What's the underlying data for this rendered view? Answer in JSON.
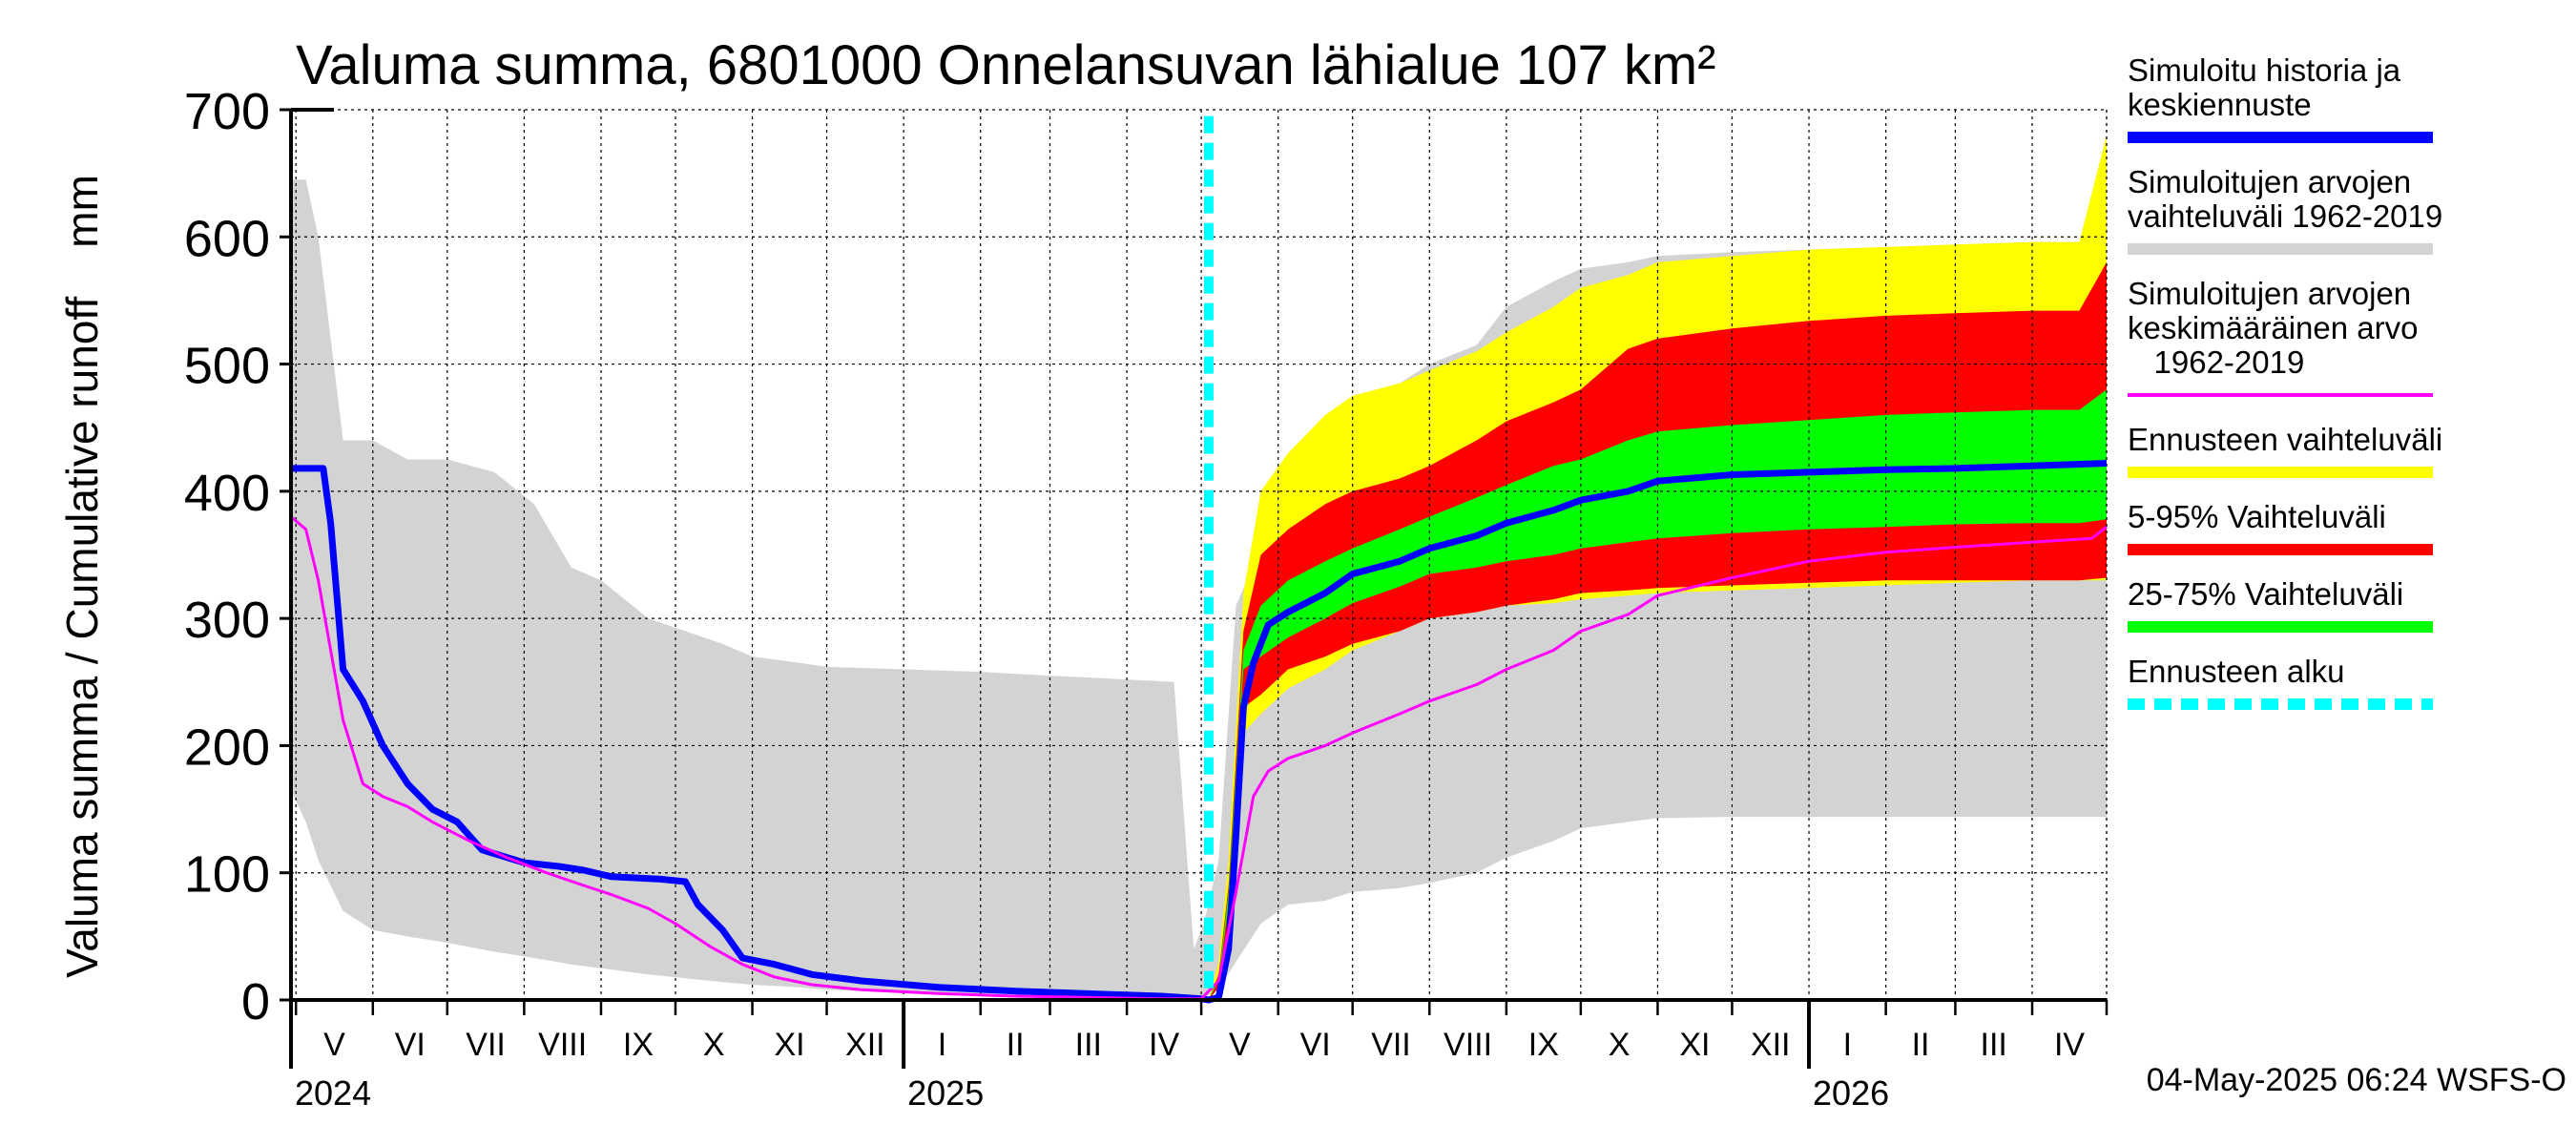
{
  "chart_data": {
    "type": "area",
    "title": "Valuma summa, 6801000 Onnelansuvan lähialue 107 km²",
    "ylabel": "Valuma summa / Cumulative runoff    mm",
    "ylim": [
      0,
      700
    ],
    "yticks": [
      "0",
      "100",
      "200",
      "300",
      "400",
      "500",
      "600",
      "700"
    ],
    "xlim": [
      "2024-04-29",
      "2026-05-01"
    ],
    "grid": true,
    "legend_position": "right",
    "forecast_start": "2025-05-04",
    "timestamp": "04-May-2025 06:24 WSFS-O",
    "month_labels": [
      "V",
      "VI",
      "VII",
      "VIII",
      "IX",
      "X",
      "XI",
      "XII",
      "I",
      "II",
      "III",
      "IV",
      "V",
      "VI",
      "VII",
      "VIII",
      "IX",
      "X",
      "XI",
      "XII",
      "I",
      "II",
      "III",
      "IV"
    ],
    "year_labels": [
      "2024",
      "2025",
      "2026"
    ],
    "legend": [
      {
        "lines": [
          "Simuloitu historia ja",
          "keskiennuste"
        ],
        "color": "#0000ff",
        "style": "solid"
      },
      {
        "lines": [
          "Simuloitujen arvojen",
          "vaihteluväli 1962-2019"
        ],
        "color": "#d3d3d3",
        "style": "solid"
      },
      {
        "lines": [
          "Simuloitujen arvojen",
          "keskimääräinen arvo",
          "   1962-2019"
        ],
        "color": "#ff00ff",
        "style": "thin"
      },
      {
        "lines": [
          "Ennusteen vaihteluväli"
        ],
        "color": "#ffff00",
        "style": "solid"
      },
      {
        "lines": [
          "5-95% Vaihteluväli"
        ],
        "color": "#ff0000",
        "style": "solid"
      },
      {
        "lines": [
          "25-75% Vaihteluväli"
        ],
        "color": "#00ff00",
        "style": "solid"
      },
      {
        "lines": [
          "Ennusteen alku"
        ],
        "color": "#00ffff",
        "style": "dashed"
      }
    ],
    "series": [
      {
        "name": "Simuloitujen arvojen vaihteluväli 1962-2019",
        "kind": "band",
        "color": "#d3d3d3",
        "x": [
          "2024-04-29",
          "2024-05-05",
          "2024-05-10",
          "2024-05-20",
          "2024-06-01",
          "2024-06-15",
          "2024-07-01",
          "2024-07-20",
          "2024-08-05",
          "2024-08-20",
          "2024-09-01",
          "2024-09-20",
          "2024-10-05",
          "2024-10-20",
          "2024-11-01",
          "2024-11-20",
          "2024-12-01",
          "2025-01-01",
          "2025-02-01",
          "2025-03-01",
          "2025-04-01",
          "2025-04-20",
          "2025-04-28",
          "2025-05-02",
          "2025-05-08",
          "2025-05-15",
          "2025-05-25",
          "2025-06-05",
          "2025-06-20",
          "2025-07-01",
          "2025-07-20",
          "2025-08-01",
          "2025-08-20",
          "2025-09-01",
          "2025-09-20",
          "2025-10-01",
          "2025-10-20",
          "2025-11-01",
          "2025-12-01",
          "2026-01-01",
          "2026-02-01",
          "2026-03-01",
          "2026-04-01",
          "2026-04-20",
          "2026-05-01"
        ],
        "low": [
          165,
          140,
          110,
          70,
          55,
          50,
          45,
          38,
          33,
          28,
          25,
          20,
          17,
          14,
          12,
          10,
          8,
          6,
          5,
          4,
          3,
          2,
          1,
          2,
          8,
          30,
          60,
          75,
          78,
          85,
          88,
          92,
          100,
          112,
          125,
          135,
          140,
          143,
          144,
          144,
          144,
          144,
          144,
          144,
          144
        ],
        "high": [
          645,
          645,
          600,
          440,
          440,
          425,
          425,
          415,
          390,
          340,
          330,
          300,
          290,
          280,
          270,
          265,
          262,
          260,
          258,
          255,
          252,
          250,
          40,
          60,
          110,
          310,
          355,
          410,
          440,
          462,
          485,
          500,
          515,
          545,
          565,
          575,
          580,
          585,
          588,
          590,
          592,
          593,
          594,
          594,
          594
        ]
      },
      {
        "name": "Ennusteen vaihteluväli",
        "kind": "band",
        "color": "#ffff00",
        "x": [
          "2025-05-04",
          "2025-05-08",
          "2025-05-12",
          "2025-05-18",
          "2025-05-25",
          "2025-06-05",
          "2025-06-20",
          "2025-07-01",
          "2025-07-20",
          "2025-08-01",
          "2025-08-20",
          "2025-09-01",
          "2025-09-20",
          "2025-10-01",
          "2025-10-20",
          "2025-11-01",
          "2025-12-01",
          "2026-01-01",
          "2026-02-01",
          "2026-03-01",
          "2026-04-01",
          "2026-04-20",
          "2026-05-01"
        ],
        "low": [
          0,
          15,
          80,
          210,
          225,
          245,
          260,
          275,
          290,
          300,
          305,
          310,
          312,
          315,
          318,
          320,
          322,
          324,
          326,
          328,
          330,
          330,
          330
        ],
        "high": [
          0,
          30,
          110,
          320,
          400,
          430,
          460,
          475,
          485,
          495,
          510,
          525,
          545,
          560,
          570,
          580,
          585,
          590,
          592,
          594,
          596,
          596,
          680
        ]
      },
      {
        "name": "5-95% Vaihteluväli",
        "kind": "band",
        "color": "#ff0000",
        "x": [
          "2025-05-04",
          "2025-05-08",
          "2025-05-12",
          "2025-05-18",
          "2025-05-25",
          "2025-06-05",
          "2025-06-20",
          "2025-07-01",
          "2025-07-20",
          "2025-08-01",
          "2025-08-20",
          "2025-09-01",
          "2025-09-20",
          "2025-10-01",
          "2025-10-20",
          "2025-11-01",
          "2025-12-01",
          "2026-01-01",
          "2026-02-01",
          "2026-03-01",
          "2026-04-01",
          "2026-04-20",
          "2026-05-01"
        ],
        "low": [
          0,
          10,
          60,
          230,
          240,
          260,
          270,
          280,
          290,
          300,
          305,
          310,
          315,
          320,
          322,
          324,
          326,
          328,
          330,
          330,
          330,
          330,
          332
        ],
        "high": [
          0,
          20,
          90,
          290,
          350,
          370,
          390,
          400,
          410,
          420,
          440,
          455,
          470,
          480,
          512,
          520,
          528,
          534,
          538,
          540,
          542,
          542,
          580
        ]
      },
      {
        "name": "25-75% Vaihteluväli",
        "kind": "band",
        "color": "#00ff00",
        "x": [
          "2025-05-04",
          "2025-05-08",
          "2025-05-12",
          "2025-05-18",
          "2025-05-25",
          "2025-06-05",
          "2025-06-20",
          "2025-07-01",
          "2025-07-20",
          "2025-08-01",
          "2025-08-20",
          "2025-09-01",
          "2025-09-20",
          "2025-10-01",
          "2025-10-20",
          "2025-11-01",
          "2025-12-01",
          "2026-01-01",
          "2026-02-01",
          "2026-03-01",
          "2026-04-01",
          "2026-04-20",
          "2026-05-01"
        ],
        "low": [
          0,
          15,
          75,
          260,
          270,
          285,
          300,
          312,
          325,
          335,
          340,
          345,
          350,
          355,
          360,
          363,
          367,
          370,
          372,
          374,
          375,
          375,
          378
        ],
        "high": [
          0,
          18,
          85,
          275,
          310,
          330,
          345,
          355,
          370,
          380,
          395,
          405,
          420,
          425,
          440,
          447,
          452,
          456,
          460,
          462,
          464,
          464,
          480
        ]
      },
      {
        "name": "Simuloitu historia ja keskiennuste",
        "kind": "line",
        "color": "#0000ff",
        "width": 7,
        "x": [
          "2024-04-29",
          "2024-05-12",
          "2024-05-15",
          "2024-05-20",
          "2024-05-28",
          "2024-06-05",
          "2024-06-15",
          "2024-06-25",
          "2024-07-05",
          "2024-07-15",
          "2024-08-01",
          "2024-08-15",
          "2024-08-25",
          "2024-09-05",
          "2024-09-25",
          "2024-10-05",
          "2024-10-10",
          "2024-10-20",
          "2024-10-28",
          "2024-11-10",
          "2024-11-25",
          "2024-12-15",
          "2025-01-15",
          "2025-02-15",
          "2025-03-15",
          "2025-04-15",
          "2025-05-01",
          "2025-05-04",
          "2025-05-08",
          "2025-05-12",
          "2025-05-15",
          "2025-05-18",
          "2025-05-22",
          "2025-05-28",
          "2025-06-05",
          "2025-06-20",
          "2025-07-01",
          "2025-07-20",
          "2025-08-01",
          "2025-08-20",
          "2025-09-01",
          "2025-09-20",
          "2025-10-01",
          "2025-10-20",
          "2025-11-01",
          "2025-12-01",
          "2026-01-01",
          "2026-02-01",
          "2026-03-01",
          "2026-04-01",
          "2026-05-01"
        ],
        "y": [
          418,
          418,
          375,
          260,
          235,
          200,
          170,
          150,
          140,
          118,
          108,
          105,
          102,
          97,
          95,
          93,
          75,
          55,
          33,
          28,
          20,
          15,
          10,
          7,
          5,
          3,
          1,
          0,
          2,
          40,
          130,
          230,
          265,
          295,
          305,
          320,
          335,
          345,
          355,
          365,
          375,
          385,
          393,
          400,
          408,
          413,
          415,
          417,
          418,
          420,
          422
        ]
      },
      {
        "name": "Simuloitujen arvojen keskimääräinen arvo 1962-2019",
        "kind": "line",
        "color": "#ff00ff",
        "width": 3,
        "x": [
          "2024-04-29",
          "2024-05-05",
          "2024-05-10",
          "2024-05-15",
          "2024-05-20",
          "2024-05-28",
          "2024-06-05",
          "2024-06-15",
          "2024-06-25",
          "2024-07-10",
          "2024-07-25",
          "2024-08-10",
          "2024-08-25",
          "2024-09-05",
          "2024-09-20",
          "2024-10-01",
          "2024-10-15",
          "2024-10-28",
          "2024-11-10",
          "2024-11-25",
          "2024-12-15",
          "2025-01-15",
          "2025-02-15",
          "2025-03-15",
          "2025-04-15",
          "2025-05-01",
          "2025-05-08",
          "2025-05-15",
          "2025-05-22",
          "2025-05-28",
          "2025-06-05",
          "2025-06-20",
          "2025-07-01",
          "2025-07-20",
          "2025-08-01",
          "2025-08-20",
          "2025-09-01",
          "2025-09-20",
          "2025-10-01",
          "2025-10-20",
          "2025-11-01",
          "2025-12-01",
          "2026-01-01",
          "2026-02-01",
          "2026-03-01",
          "2026-04-01",
          "2026-04-25",
          "2026-05-01"
        ],
        "y": [
          380,
          370,
          330,
          275,
          220,
          170,
          160,
          152,
          140,
          125,
          112,
          100,
          90,
          83,
          72,
          60,
          42,
          28,
          18,
          12,
          8,
          5,
          3,
          2,
          1,
          1,
          15,
          85,
          160,
          180,
          190,
          200,
          210,
          225,
          235,
          248,
          260,
          275,
          290,
          303,
          318,
          332,
          345,
          352,
          356,
          360,
          363,
          372
        ]
      }
    ]
  }
}
